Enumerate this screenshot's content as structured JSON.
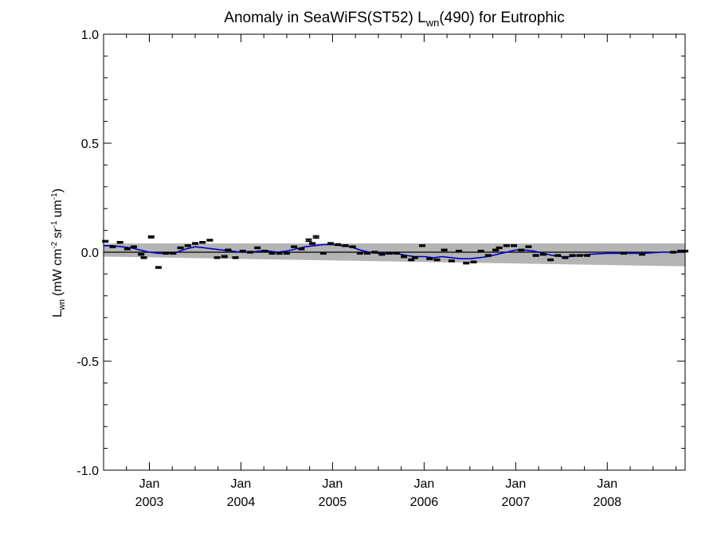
{
  "chart_data": {
    "type": "scatter",
    "title": {
      "prefix": "Anomaly in SeaWiFS(ST52) L",
      "subscript": "wn",
      "suffix": "(490) for Eutrophic"
    },
    "ylabel": {
      "main": "L",
      "main_sub": "wn",
      "open": "(mW cm",
      "exp1": "-2",
      "mid": "sr",
      "exp2": "-1",
      "unit": "um",
      "exp3": "-1",
      "close": ")"
    },
    "xlabel": "",
    "xlim": [
      2002.5,
      2008.85
    ],
    "ylim": [
      -1.0,
      1.0
    ],
    "y_ticks": [
      {
        "value": -1.0,
        "label": "-1.0"
      },
      {
        "value": -0.5,
        "label": "-0.5"
      },
      {
        "value": 0.0,
        "label": "0.0"
      },
      {
        "value": 0.5,
        "label": "0.5"
      },
      {
        "value": 1.0,
        "label": "1.0"
      }
    ],
    "x_ticks": [
      {
        "value": 2003.0,
        "month": "Jan",
        "year": "2003"
      },
      {
        "value": 2004.0,
        "month": "Jan",
        "year": "2004"
      },
      {
        "value": 2005.0,
        "month": "Jan",
        "year": "2005"
      },
      {
        "value": 2006.0,
        "month": "Jan",
        "year": "2006"
      },
      {
        "value": 2007.0,
        "month": "Jan",
        "year": "2007"
      },
      {
        "value": 2008.0,
        "month": "Jan",
        "year": "2008"
      }
    ],
    "zero_line": 0.0,
    "band": {
      "upper_start": 0.04,
      "upper_end": 0.04,
      "lower_start": -0.02,
      "lower_end": -0.065
    },
    "points": [
      {
        "x": 2002.52,
        "y": 0.05,
        "err": 0.004
      },
      {
        "x": 2002.6,
        "y": 0.025,
        "err": 0.004
      },
      {
        "x": 2002.68,
        "y": 0.045,
        "err": 0.004
      },
      {
        "x": 2002.76,
        "y": 0.015,
        "err": 0.004
      },
      {
        "x": 2002.83,
        "y": 0.025,
        "err": 0.004
      },
      {
        "x": 2002.91,
        "y": -0.01,
        "err": 0.004
      },
      {
        "x": 2002.94,
        "y": -0.025,
        "err": 0.004
      },
      {
        "x": 2003.02,
        "y": 0.07,
        "err": 0.005
      },
      {
        "x": 2003.1,
        "y": -0.07,
        "err": 0.004
      },
      {
        "x": 2003.18,
        "y": -0.005,
        "err": 0.004
      },
      {
        "x": 2003.26,
        "y": -0.005,
        "err": 0.004
      },
      {
        "x": 2003.34,
        "y": 0.02,
        "err": 0.004
      },
      {
        "x": 2003.42,
        "y": 0.03,
        "err": 0.004
      },
      {
        "x": 2003.5,
        "y": 0.04,
        "err": 0.004
      },
      {
        "x": 2003.58,
        "y": 0.045,
        "err": 0.004
      },
      {
        "x": 2003.66,
        "y": 0.055,
        "err": 0.004
      },
      {
        "x": 2003.74,
        "y": -0.025,
        "err": 0.004
      },
      {
        "x": 2003.82,
        "y": -0.02,
        "err": 0.005
      },
      {
        "x": 2003.86,
        "y": 0.01,
        "err": 0.004
      },
      {
        "x": 2003.94,
        "y": -0.025,
        "err": 0.004
      },
      {
        "x": 2004.02,
        "y": 0.005,
        "err": 0.004
      },
      {
        "x": 2004.1,
        "y": 0.0,
        "err": 0.004
      },
      {
        "x": 2004.18,
        "y": 0.02,
        "err": 0.004
      },
      {
        "x": 2004.26,
        "y": 0.005,
        "err": 0.004
      },
      {
        "x": 2004.34,
        "y": -0.005,
        "err": 0.004
      },
      {
        "x": 2004.42,
        "y": -0.005,
        "err": 0.004
      },
      {
        "x": 2004.5,
        "y": -0.005,
        "err": 0.004
      },
      {
        "x": 2004.58,
        "y": 0.025,
        "err": 0.004
      },
      {
        "x": 2004.66,
        "y": 0.015,
        "err": 0.004
      },
      {
        "x": 2004.74,
        "y": 0.055,
        "err": 0.006
      },
      {
        "x": 2004.78,
        "y": 0.04,
        "err": 0.004
      },
      {
        "x": 2004.82,
        "y": 0.07,
        "err": 0.006
      },
      {
        "x": 2004.9,
        "y": -0.005,
        "err": 0.004
      },
      {
        "x": 2004.98,
        "y": 0.04,
        "err": 0.004
      },
      {
        "x": 2005.06,
        "y": 0.035,
        "err": 0.004
      },
      {
        "x": 2005.14,
        "y": 0.03,
        "err": 0.004
      },
      {
        "x": 2005.22,
        "y": 0.025,
        "err": 0.004
      },
      {
        "x": 2005.3,
        "y": -0.005,
        "err": 0.004
      },
      {
        "x": 2005.38,
        "y": -0.005,
        "err": 0.004
      },
      {
        "x": 2005.46,
        "y": 0.0,
        "err": 0.004
      },
      {
        "x": 2005.54,
        "y": -0.01,
        "err": 0.004
      },
      {
        "x": 2005.62,
        "y": -0.005,
        "err": 0.004
      },
      {
        "x": 2005.7,
        "y": -0.005,
        "err": 0.004
      },
      {
        "x": 2005.78,
        "y": -0.02,
        "err": 0.005
      },
      {
        "x": 2005.86,
        "y": -0.035,
        "err": 0.004
      },
      {
        "x": 2005.9,
        "y": -0.025,
        "err": 0.004
      },
      {
        "x": 2005.98,
        "y": 0.03,
        "err": 0.004
      },
      {
        "x": 2006.06,
        "y": -0.03,
        "err": 0.004
      },
      {
        "x": 2006.14,
        "y": -0.035,
        "err": 0.004
      },
      {
        "x": 2006.22,
        "y": 0.01,
        "err": 0.004
      },
      {
        "x": 2006.3,
        "y": -0.04,
        "err": 0.004
      },
      {
        "x": 2006.38,
        "y": 0.005,
        "err": 0.004
      },
      {
        "x": 2006.46,
        "y": -0.05,
        "err": 0.004
      },
      {
        "x": 2006.54,
        "y": -0.045,
        "err": 0.004
      },
      {
        "x": 2006.62,
        "y": 0.005,
        "err": 0.004
      },
      {
        "x": 2006.7,
        "y": -0.015,
        "err": 0.004
      },
      {
        "x": 2006.78,
        "y": 0.01,
        "err": 0.004
      },
      {
        "x": 2006.82,
        "y": 0.02,
        "err": 0.004
      },
      {
        "x": 2006.9,
        "y": 0.03,
        "err": 0.004
      },
      {
        "x": 2006.98,
        "y": 0.03,
        "err": 0.004
      },
      {
        "x": 2007.06,
        "y": 0.01,
        "err": 0.004
      },
      {
        "x": 2007.14,
        "y": 0.025,
        "err": 0.004
      },
      {
        "x": 2007.22,
        "y": -0.015,
        "err": 0.004
      },
      {
        "x": 2007.3,
        "y": -0.01,
        "err": 0.004
      },
      {
        "x": 2007.38,
        "y": -0.035,
        "err": 0.004
      },
      {
        "x": 2007.46,
        "y": -0.015,
        "err": 0.004
      },
      {
        "x": 2007.54,
        "y": -0.025,
        "err": 0.004
      },
      {
        "x": 2007.62,
        "y": -0.015,
        "err": 0.004
      },
      {
        "x": 2007.7,
        "y": -0.015,
        "err": 0.004
      },
      {
        "x": 2007.78,
        "y": -0.015,
        "err": 0.004
      },
      {
        "x": 2008.18,
        "y": -0.005,
        "err": 0.004
      },
      {
        "x": 2008.38,
        "y": -0.01,
        "err": 0.004
      },
      {
        "x": 2008.72,
        "y": 0.0,
        "err": 0.004
      },
      {
        "x": 2008.8,
        "y": 0.005,
        "err": 0.004
      },
      {
        "x": 2008.85,
        "y": 0.005,
        "err": 0.004
      }
    ],
    "smooth_line": [
      {
        "x": 2002.5,
        "y": 0.03
      },
      {
        "x": 2002.6,
        "y": 0.03
      },
      {
        "x": 2002.7,
        "y": 0.025
      },
      {
        "x": 2002.8,
        "y": 0.02
      },
      {
        "x": 2002.9,
        "y": 0.01
      },
      {
        "x": 2003.0,
        "y": 0.0
      },
      {
        "x": 2003.1,
        "y": -0.005
      },
      {
        "x": 2003.2,
        "y": -0.005
      },
      {
        "x": 2003.3,
        "y": 0.0
      },
      {
        "x": 2003.4,
        "y": 0.015
      },
      {
        "x": 2003.5,
        "y": 0.025
      },
      {
        "x": 2003.6,
        "y": 0.02
      },
      {
        "x": 2003.7,
        "y": 0.015
      },
      {
        "x": 2003.8,
        "y": 0.01
      },
      {
        "x": 2003.9,
        "y": 0.005
      },
      {
        "x": 2004.0,
        "y": 0.0
      },
      {
        "x": 2004.1,
        "y": 0.0
      },
      {
        "x": 2004.2,
        "y": 0.005
      },
      {
        "x": 2004.3,
        "y": 0.005
      },
      {
        "x": 2004.4,
        "y": 0.0
      },
      {
        "x": 2004.5,
        "y": 0.005
      },
      {
        "x": 2004.6,
        "y": 0.015
      },
      {
        "x": 2004.7,
        "y": 0.025
      },
      {
        "x": 2004.8,
        "y": 0.03
      },
      {
        "x": 2004.9,
        "y": 0.035
      },
      {
        "x": 2005.0,
        "y": 0.035
      },
      {
        "x": 2005.1,
        "y": 0.03
      },
      {
        "x": 2005.2,
        "y": 0.025
      },
      {
        "x": 2005.3,
        "y": 0.01
      },
      {
        "x": 2005.4,
        "y": 0.0
      },
      {
        "x": 2005.5,
        "y": -0.005
      },
      {
        "x": 2005.6,
        "y": -0.005
      },
      {
        "x": 2005.7,
        "y": -0.005
      },
      {
        "x": 2005.8,
        "y": -0.015
      },
      {
        "x": 2005.9,
        "y": -0.02
      },
      {
        "x": 2006.0,
        "y": -0.02
      },
      {
        "x": 2006.1,
        "y": -0.025
      },
      {
        "x": 2006.2,
        "y": -0.02
      },
      {
        "x": 2006.3,
        "y": -0.025
      },
      {
        "x": 2006.4,
        "y": -0.03
      },
      {
        "x": 2006.5,
        "y": -0.03
      },
      {
        "x": 2006.6,
        "y": -0.025
      },
      {
        "x": 2006.7,
        "y": -0.02
      },
      {
        "x": 2006.8,
        "y": -0.01
      },
      {
        "x": 2006.9,
        "y": 0.0
      },
      {
        "x": 2007.0,
        "y": 0.01
      },
      {
        "x": 2007.1,
        "y": 0.01
      },
      {
        "x": 2007.2,
        "y": 0.005
      },
      {
        "x": 2007.3,
        "y": -0.005
      },
      {
        "x": 2007.4,
        "y": -0.015
      },
      {
        "x": 2007.5,
        "y": -0.02
      },
      {
        "x": 2007.6,
        "y": -0.02
      },
      {
        "x": 2007.7,
        "y": -0.015
      },
      {
        "x": 2007.8,
        "y": -0.01
      },
      {
        "x": 2008.0,
        "y": -0.005
      },
      {
        "x": 2008.2,
        "y": -0.005
      },
      {
        "x": 2008.4,
        "y": -0.005
      },
      {
        "x": 2008.6,
        "y": 0.0
      },
      {
        "x": 2008.8,
        "y": 0.0
      },
      {
        "x": 2008.85,
        "y": 0.0
      }
    ],
    "colors": {
      "band": "#b4b4b4",
      "smooth_line": "#0000cc",
      "points": "#000000",
      "axes": "#000000"
    },
    "grid": false,
    "legend": "none"
  }
}
